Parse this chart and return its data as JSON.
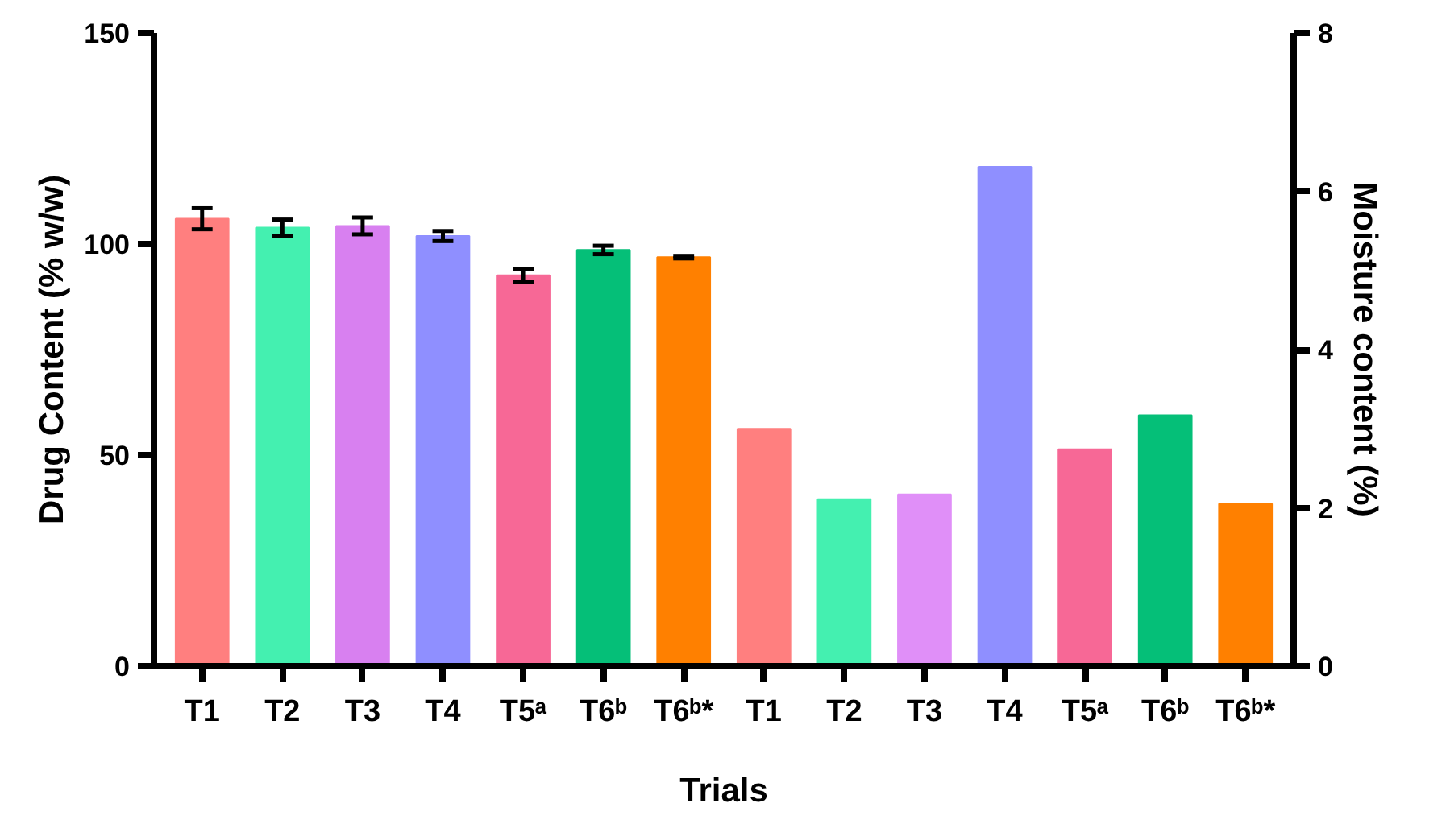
{
  "chart_data": {
    "type": "bar",
    "xlabel": "Trials",
    "ylabel": "Drug Content (% w/w)",
    "y2label": "Moisture content (%)",
    "categories": [
      "T1",
      "T2",
      "T3",
      "T4",
      "T5ᵃ",
      "T6ᵇ",
      "T6ᵇ*",
      "T1",
      "T2",
      "T3",
      "T4",
      "T5ᵃ",
      "T6ᵇ",
      "T6ᵇ*"
    ],
    "ylim": [
      0,
      150
    ],
    "yticks": [
      0,
      50,
      100,
      150
    ],
    "y2lim": [
      0,
      8
    ],
    "y2ticks": [
      0,
      2,
      4,
      6,
      8
    ],
    "series": [
      {
        "axis": "y",
        "colors": [
          "#ff7f7f",
          "#44f0b0",
          "#d880f0",
          "#8f8fff",
          "#f76896",
          "#05bf78",
          "#ff8000",
          null,
          null,
          null,
          null,
          null,
          null,
          null
        ],
        "values": [
          106.0,
          103.9,
          104.3,
          101.9,
          92.6,
          98.6,
          96.9,
          null,
          null,
          null,
          null,
          null,
          null,
          null
        ],
        "errors": [
          2.5,
          1.9,
          2.0,
          1.2,
          1.5,
          1.0,
          0.3,
          null,
          null,
          null,
          null,
          null,
          null,
          null
        ]
      },
      {
        "axis": "y2",
        "colors": [
          null,
          null,
          null,
          null,
          null,
          null,
          null,
          "#ff7f7f",
          "#44f0b0",
          "#e08ff8",
          "#8f8fff",
          "#f76896",
          "#05bf78",
          "#ff8000"
        ],
        "values": [
          null,
          null,
          null,
          null,
          null,
          null,
          null,
          3.0,
          2.11,
          2.17,
          6.31,
          2.74,
          3.17,
          2.05
        ]
      }
    ]
  }
}
